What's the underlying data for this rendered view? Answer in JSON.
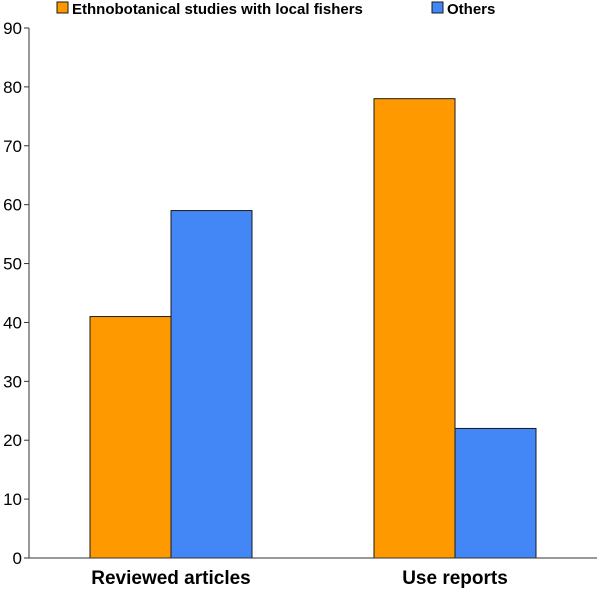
{
  "chart_data": {
    "type": "bar",
    "categories": [
      "Reviewed articles",
      "Use reports"
    ],
    "series": [
      {
        "name": "Ethnobotanical studies with local fishers",
        "color": "#ff9900",
        "values": [
          41,
          78
        ]
      },
      {
        "name": "Others",
        "color": "#4287f5",
        "values": [
          59,
          22
        ]
      }
    ],
    "ylim": [
      0,
      90
    ],
    "yticks": [
      0,
      10,
      20,
      30,
      40,
      50,
      60,
      70,
      80,
      90
    ],
    "xlabel": "",
    "ylabel": "",
    "grid": false,
    "legend": "top"
  }
}
